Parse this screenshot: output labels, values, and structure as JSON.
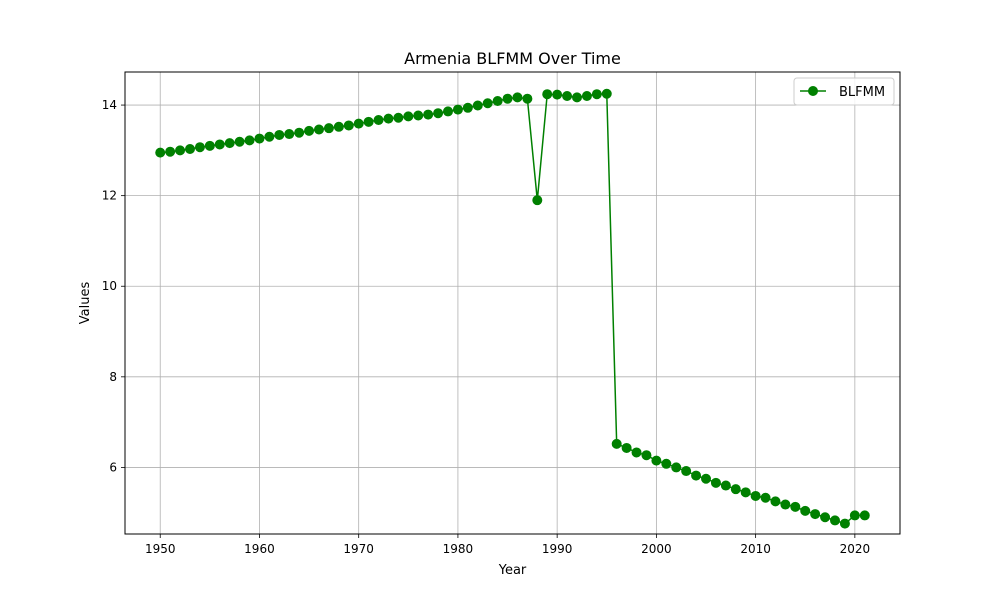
{
  "chart_data": {
    "type": "line",
    "title": "Armenia BLFMM Over Time",
    "xlabel": "Year",
    "ylabel": "Values",
    "xlim": [
      1946.45,
      2024.55
    ],
    "ylim": [
      4.53,
      14.73
    ],
    "xticks": [
      1950,
      1960,
      1970,
      1980,
      1990,
      2000,
      2010,
      2020
    ],
    "yticks": [
      6,
      8,
      10,
      12,
      14
    ],
    "grid": true,
    "legend_position": "top-right",
    "series": [
      {
        "name": "BLFMM",
        "color": "#008000",
        "marker": "circle",
        "x": [
          1950,
          1951,
          1952,
          1953,
          1954,
          1955,
          1956,
          1957,
          1958,
          1959,
          1960,
          1961,
          1962,
          1963,
          1964,
          1965,
          1966,
          1967,
          1968,
          1969,
          1970,
          1971,
          1972,
          1973,
          1974,
          1975,
          1976,
          1977,
          1978,
          1979,
          1980,
          1981,
          1982,
          1983,
          1984,
          1985,
          1986,
          1987,
          1988,
          1989,
          1990,
          1991,
          1992,
          1993,
          1994,
          1995,
          1996,
          1997,
          1998,
          1999,
          2000,
          2001,
          2002,
          2003,
          2004,
          2005,
          2006,
          2007,
          2008,
          2009,
          2010,
          2011,
          2012,
          2013,
          2014,
          2015,
          2016,
          2017,
          2018,
          2019,
          2020,
          2021
        ],
        "values": [
          12.95,
          12.97,
          13.0,
          13.03,
          13.07,
          13.1,
          13.13,
          13.16,
          13.19,
          13.22,
          13.26,
          13.3,
          13.34,
          13.36,
          13.39,
          13.43,
          13.46,
          13.49,
          13.52,
          13.55,
          13.59,
          13.63,
          13.67,
          13.7,
          13.72,
          13.75,
          13.77,
          13.79,
          13.82,
          13.86,
          13.9,
          13.94,
          13.99,
          14.04,
          14.09,
          14.14,
          14.17,
          14.14,
          11.9,
          14.24,
          14.23,
          14.2,
          14.17,
          14.2,
          14.24,
          14.25,
          6.52,
          6.43,
          6.33,
          6.27,
          6.15,
          6.08,
          6.0,
          5.92,
          5.82,
          5.75,
          5.66,
          5.6,
          5.52,
          5.45,
          5.37,
          5.33,
          5.25,
          5.18,
          5.13,
          5.04,
          4.97,
          4.9,
          4.83,
          4.76,
          4.94,
          4.94
        ]
      }
    ]
  }
}
